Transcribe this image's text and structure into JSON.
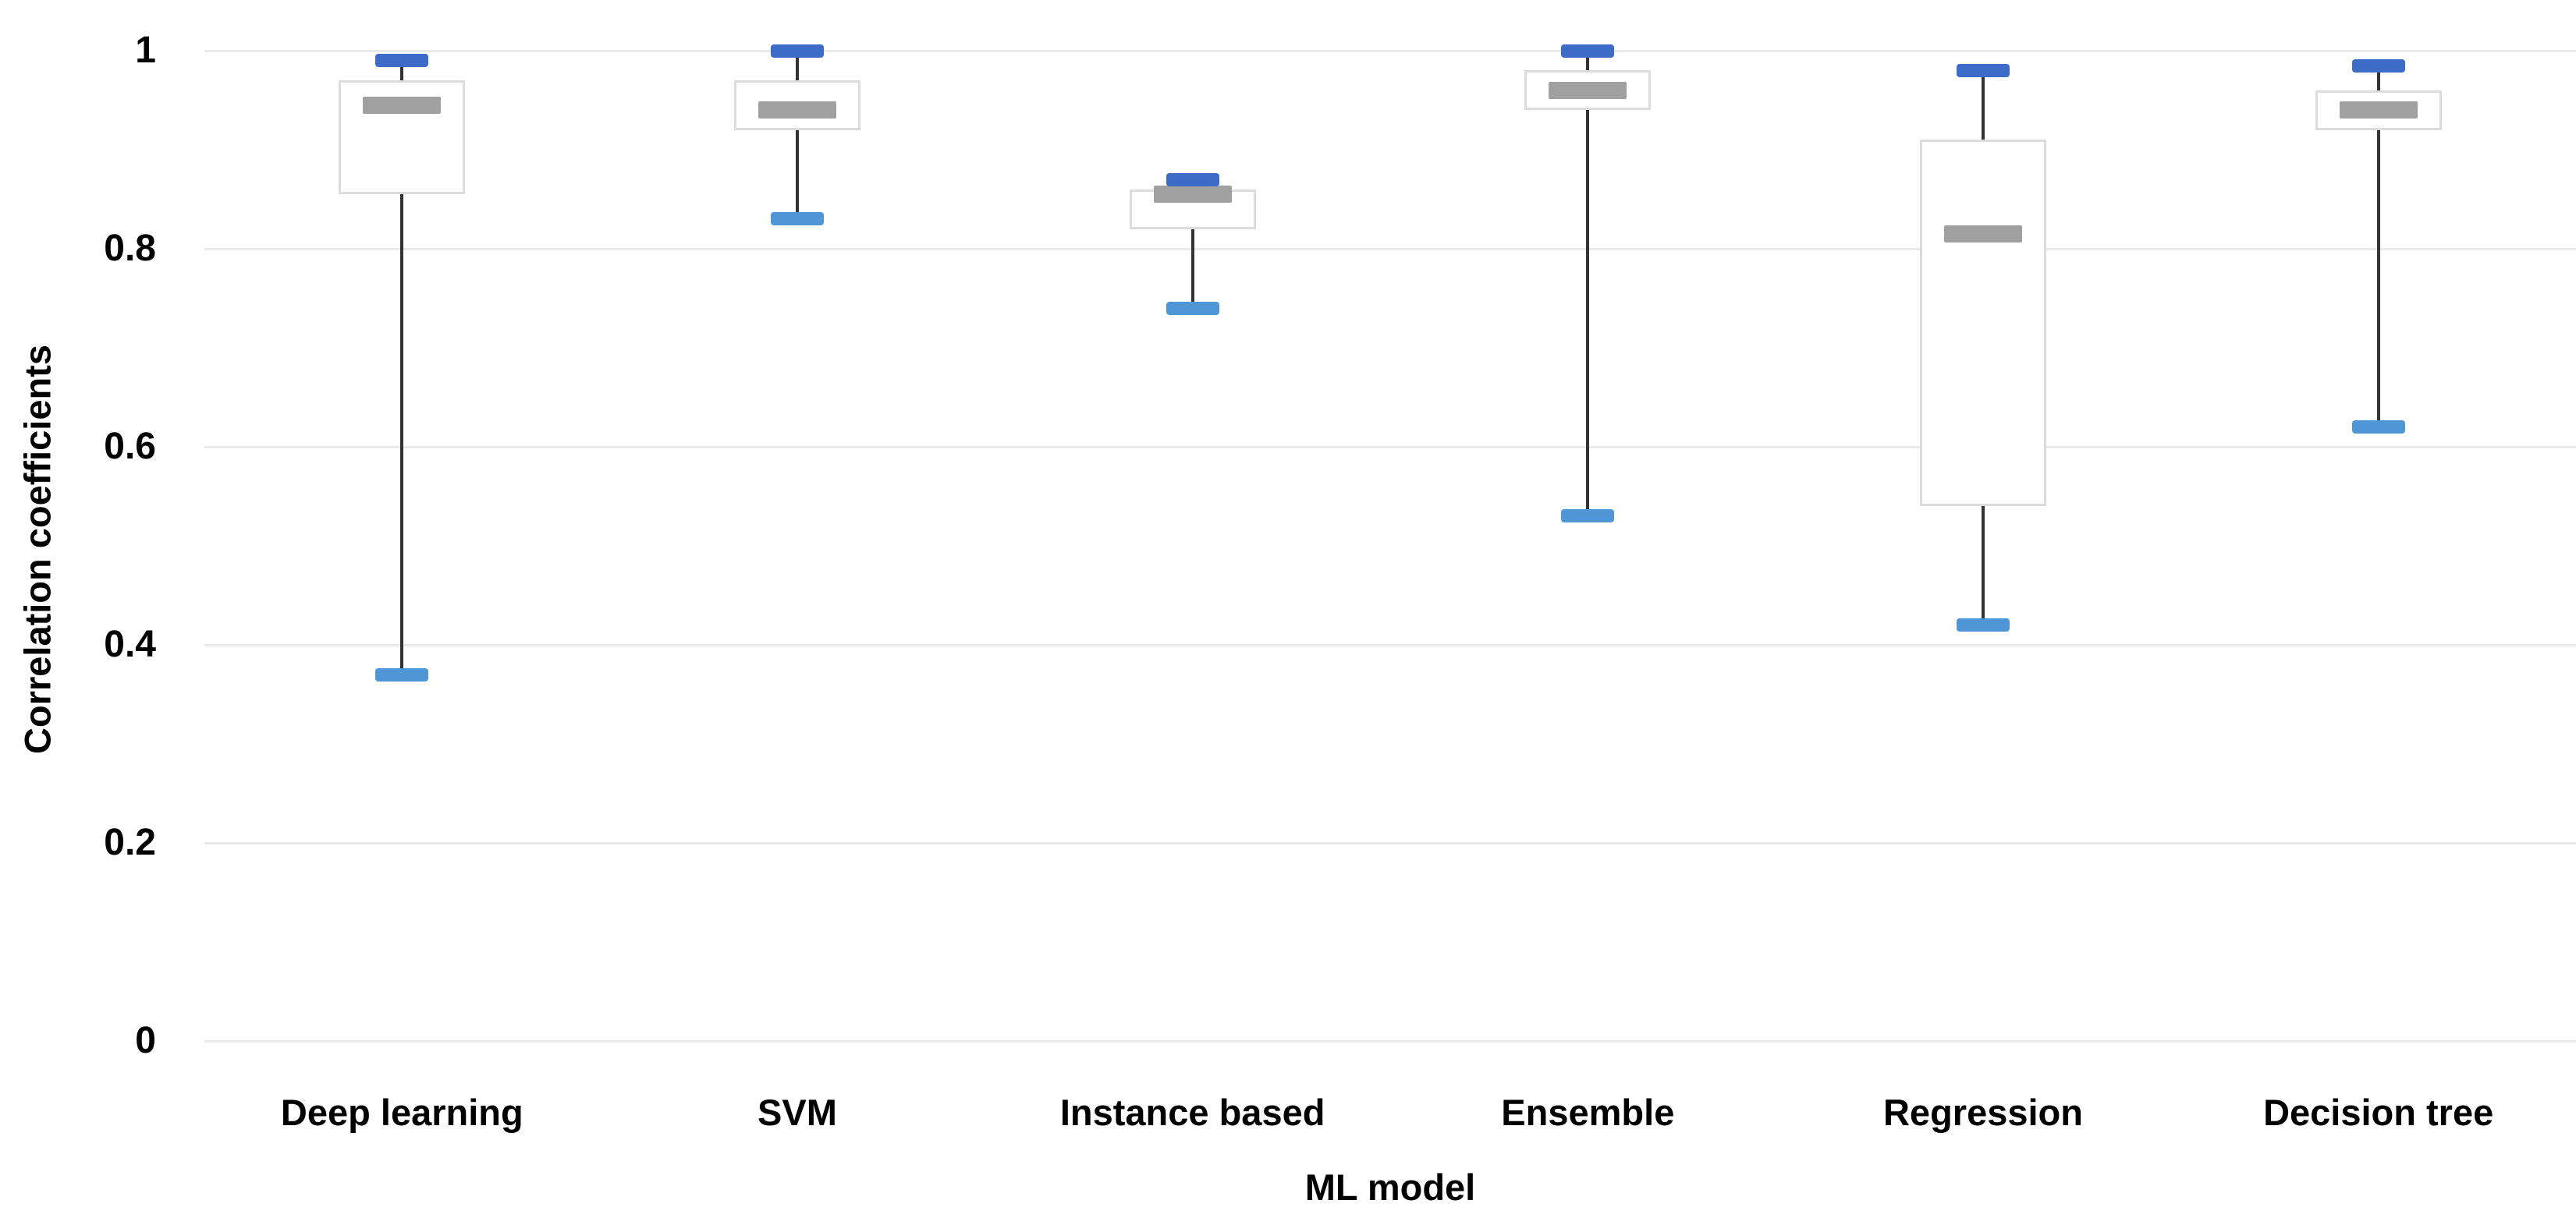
{
  "chart_data": {
    "type": "boxplot",
    "xlabel": "ML model",
    "ylabel": "Correlation coefficients",
    "ylim": [
      0,
      1
    ],
    "ytick_labels": [
      "1",
      "0.8",
      "0.6",
      "0.4",
      "0.2",
      "0"
    ],
    "ytick_values": [
      1,
      0.8,
      0.6,
      0.4,
      0.2,
      0
    ],
    "grid": "horizontal",
    "legend": "none",
    "categories": [
      "Deep learning",
      "SVM",
      "Instance based",
      "Ensemble",
      "Regression",
      "Decision tree"
    ],
    "series": [
      {
        "name": "Deep learning",
        "min": 0.37,
        "q1": 0.855,
        "median": 0.945,
        "q3": 0.97,
        "max": 0.99
      },
      {
        "name": "SVM",
        "min": 0.83,
        "q1": 0.92,
        "median": 0.94,
        "q3": 0.97,
        "max": 1.0
      },
      {
        "name": "Instance based",
        "min": 0.74,
        "q1": 0.82,
        "median": 0.855,
        "q3": 0.86,
        "max": 0.87
      },
      {
        "name": "Ensemble",
        "min": 0.53,
        "q1": 0.94,
        "median": 0.96,
        "q3": 0.98,
        "max": 1.0
      },
      {
        "name": "Regression",
        "min": 0.42,
        "q1": 0.54,
        "median": 0.815,
        "q3": 0.91,
        "max": 0.98
      },
      {
        "name": "Decision tree",
        "min": 0.62,
        "q1": 0.92,
        "median": 0.94,
        "q3": 0.96,
        "max": 0.985
      }
    ],
    "colors": {
      "max_marker": "#3c6cc8",
      "min_marker": "#4e96d6",
      "median": "#a0a0a0",
      "box_border": "#dcdcdc",
      "box_fill": "#ffffff",
      "whisker": "#333333",
      "gridline": "#e9e9e9",
      "text": "#000000"
    }
  }
}
